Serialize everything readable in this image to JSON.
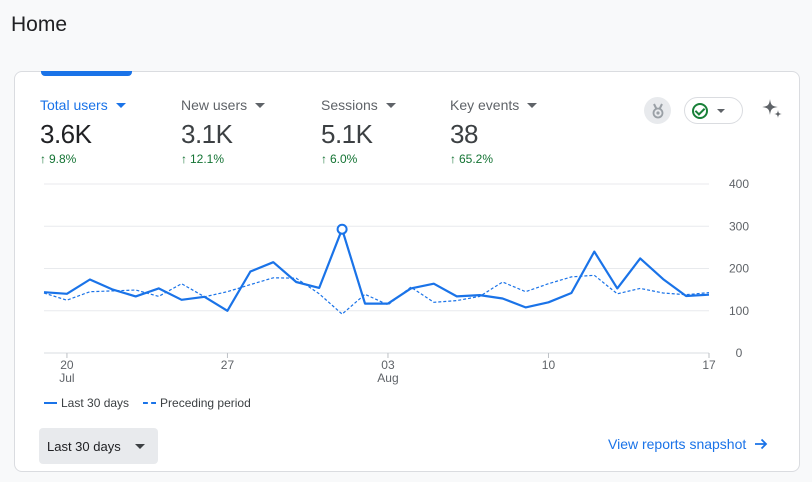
{
  "page": {
    "title": "Home"
  },
  "metrics": [
    {
      "label": "Total users",
      "value": "3.6K",
      "change": "9.8%",
      "active": true
    },
    {
      "label": "New users",
      "value": "3.1K",
      "change": "12.1%",
      "active": false
    },
    {
      "label": "Sessions",
      "value": "5.1K",
      "change": "6.0%",
      "active": false
    },
    {
      "label": "Key events",
      "value": "38",
      "change": "65.2%",
      "active": false
    }
  ],
  "icons": {
    "insight": "medal-icon",
    "status": "check-circle-icon",
    "ai": "sparkle-icon",
    "change": "arrow-up-icon",
    "link": "arrow-right-icon"
  },
  "colors": {
    "accent": "#1a73e8",
    "positive": "#137333",
    "status_ok": "#188038"
  },
  "legend": {
    "current": "Last 30 days",
    "previous": "Preceding period"
  },
  "footer": {
    "range_label": "Last 30 days",
    "snapshot_link": "View reports snapshot"
  },
  "chart_data": {
    "type": "line",
    "x": [
      "Jul 19",
      "Jul 20",
      "Jul 21",
      "Jul 22",
      "Jul 23",
      "Jul 24",
      "Jul 25",
      "Jul 26",
      "Jul 27",
      "Jul 28",
      "Jul 29",
      "Jul 30",
      "Jul 31",
      "Aug 1",
      "Aug 2",
      "Aug 3",
      "Aug 4",
      "Aug 5",
      "Aug 6",
      "Aug 7",
      "Aug 8",
      "Aug 9",
      "Aug 10",
      "Aug 11",
      "Aug 12",
      "Aug 13",
      "Aug 14",
      "Aug 15",
      "Aug 16",
      "Aug 17"
    ],
    "x_tick_labels": [
      {
        "x": "Jul 20",
        "day": "20",
        "month": "Jul"
      },
      {
        "x": "Jul 27",
        "day": "27",
        "month": ""
      },
      {
        "x": "Aug 3",
        "day": "03",
        "month": "Aug"
      },
      {
        "x": "Aug 10",
        "day": "10",
        "month": ""
      },
      {
        "x": "Aug 17",
        "day": "17",
        "month": ""
      }
    ],
    "series": [
      {
        "name": "Last 30 days",
        "style": "solid",
        "values": [
          144,
          140,
          174,
          150,
          134,
          153,
          126,
          133,
          100,
          193,
          215,
          168,
          154,
          293,
          117,
          117,
          153,
          164,
          134,
          137,
          129,
          108,
          120,
          142,
          240,
          153,
          224,
          175,
          135,
          138
        ]
      },
      {
        "name": "Preceding period",
        "style": "dashed",
        "values": [
          142,
          125,
          145,
          147,
          149,
          134,
          164,
          133,
          145,
          162,
          178,
          177,
          140,
          92,
          139,
          114,
          156,
          120,
          124,
          134,
          168,
          145,
          164,
          180,
          184,
          140,
          153,
          142,
          138,
          143
        ]
      }
    ],
    "highlight_index": 13,
    "yticks": [
      0,
      100,
      200,
      300,
      400
    ],
    "ylim": [
      0,
      400
    ],
    "grid": true,
    "legend_position": "bottom-left"
  }
}
